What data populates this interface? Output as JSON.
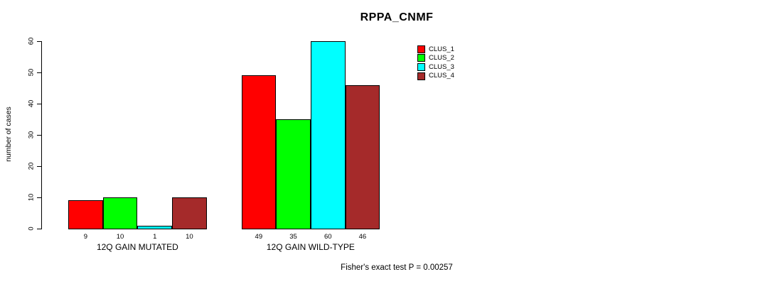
{
  "chart_data": {
    "type": "bar",
    "title": "RPPA_CNMF",
    "xlabel": "",
    "ylabel": "number of cases",
    "categories": [
      "12Q GAIN MUTATED",
      "12Q GAIN WILD-TYPE"
    ],
    "series": [
      {
        "name": "CLUS_1",
        "color": "#ff0000",
        "values": [
          9,
          49
        ]
      },
      {
        "name": "CLUS_2",
        "color": "#00ff00",
        "values": [
          10,
          35
        ]
      },
      {
        "name": "CLUS_3",
        "color": "#00ffff",
        "values": [
          1,
          60
        ]
      },
      {
        "name": "CLUS_4",
        "color": "#a52a2a",
        "values": [
          10,
          46
        ]
      }
    ],
    "ylim": [
      0,
      60
    ],
    "yticks": [
      0,
      10,
      20,
      30,
      40,
      50,
      60
    ],
    "bar_value_labels_shown": true,
    "grid": false,
    "legend_position": "top-right",
    "background_color": "#ffffff",
    "axis_color": "#000000",
    "annotation": "Fisher's exact test P = 0.00257"
  }
}
